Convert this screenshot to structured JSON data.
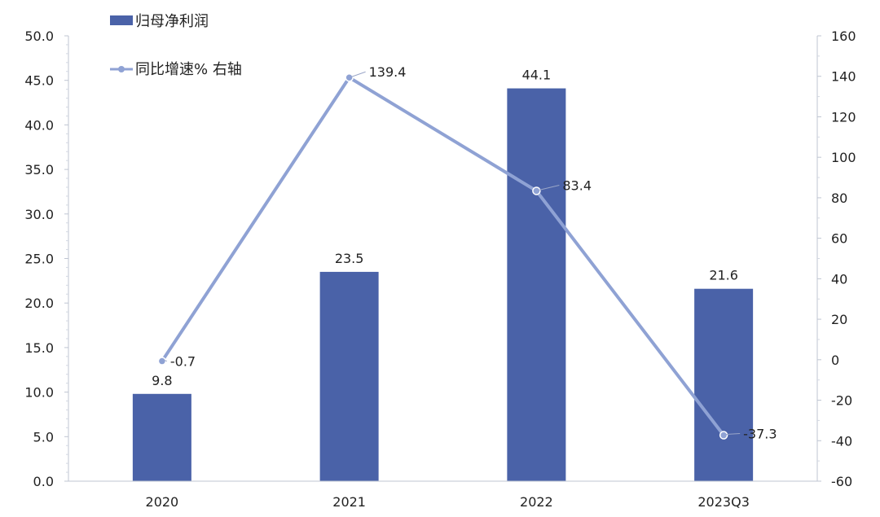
{
  "chart_data": {
    "type": "bar+line",
    "title": "",
    "categories": [
      "2020",
      "2021",
      "2022",
      "2023Q3"
    ],
    "series": [
      {
        "name": "归母净利润",
        "type": "bar",
        "axis": "left",
        "color": "#4a62a8",
        "values": [
          9.8,
          23.5,
          44.1,
          21.6
        ],
        "labels": [
          "9.8",
          "23.5",
          "44.1",
          "21.6"
        ]
      },
      {
        "name": "同比增速% 右轴",
        "type": "line",
        "axis": "right",
        "color": "#8fa2d4",
        "values": [
          -0.7,
          139.4,
          83.4,
          -37.3
        ],
        "labels": [
          "-0.7",
          "139.4",
          "83.4",
          "-37.3"
        ]
      }
    ],
    "left_axis": {
      "range": [
        0,
        50
      ],
      "ticks": [
        "0.0",
        "5.0",
        "10.0",
        "15.0",
        "20.0",
        "25.0",
        "30.0",
        "35.0",
        "40.0",
        "45.0",
        "50.0"
      ]
    },
    "right_axis": {
      "range": [
        -60,
        160
      ],
      "ticks": [
        "-60",
        "-40",
        "-20",
        "0",
        "20",
        "40",
        "60",
        "80",
        "100",
        "120",
        "140",
        "160"
      ]
    },
    "legend": {
      "position": "top-left",
      "items": [
        "归母净利润",
        "同比增速% 右轴"
      ]
    },
    "grid": false
  }
}
